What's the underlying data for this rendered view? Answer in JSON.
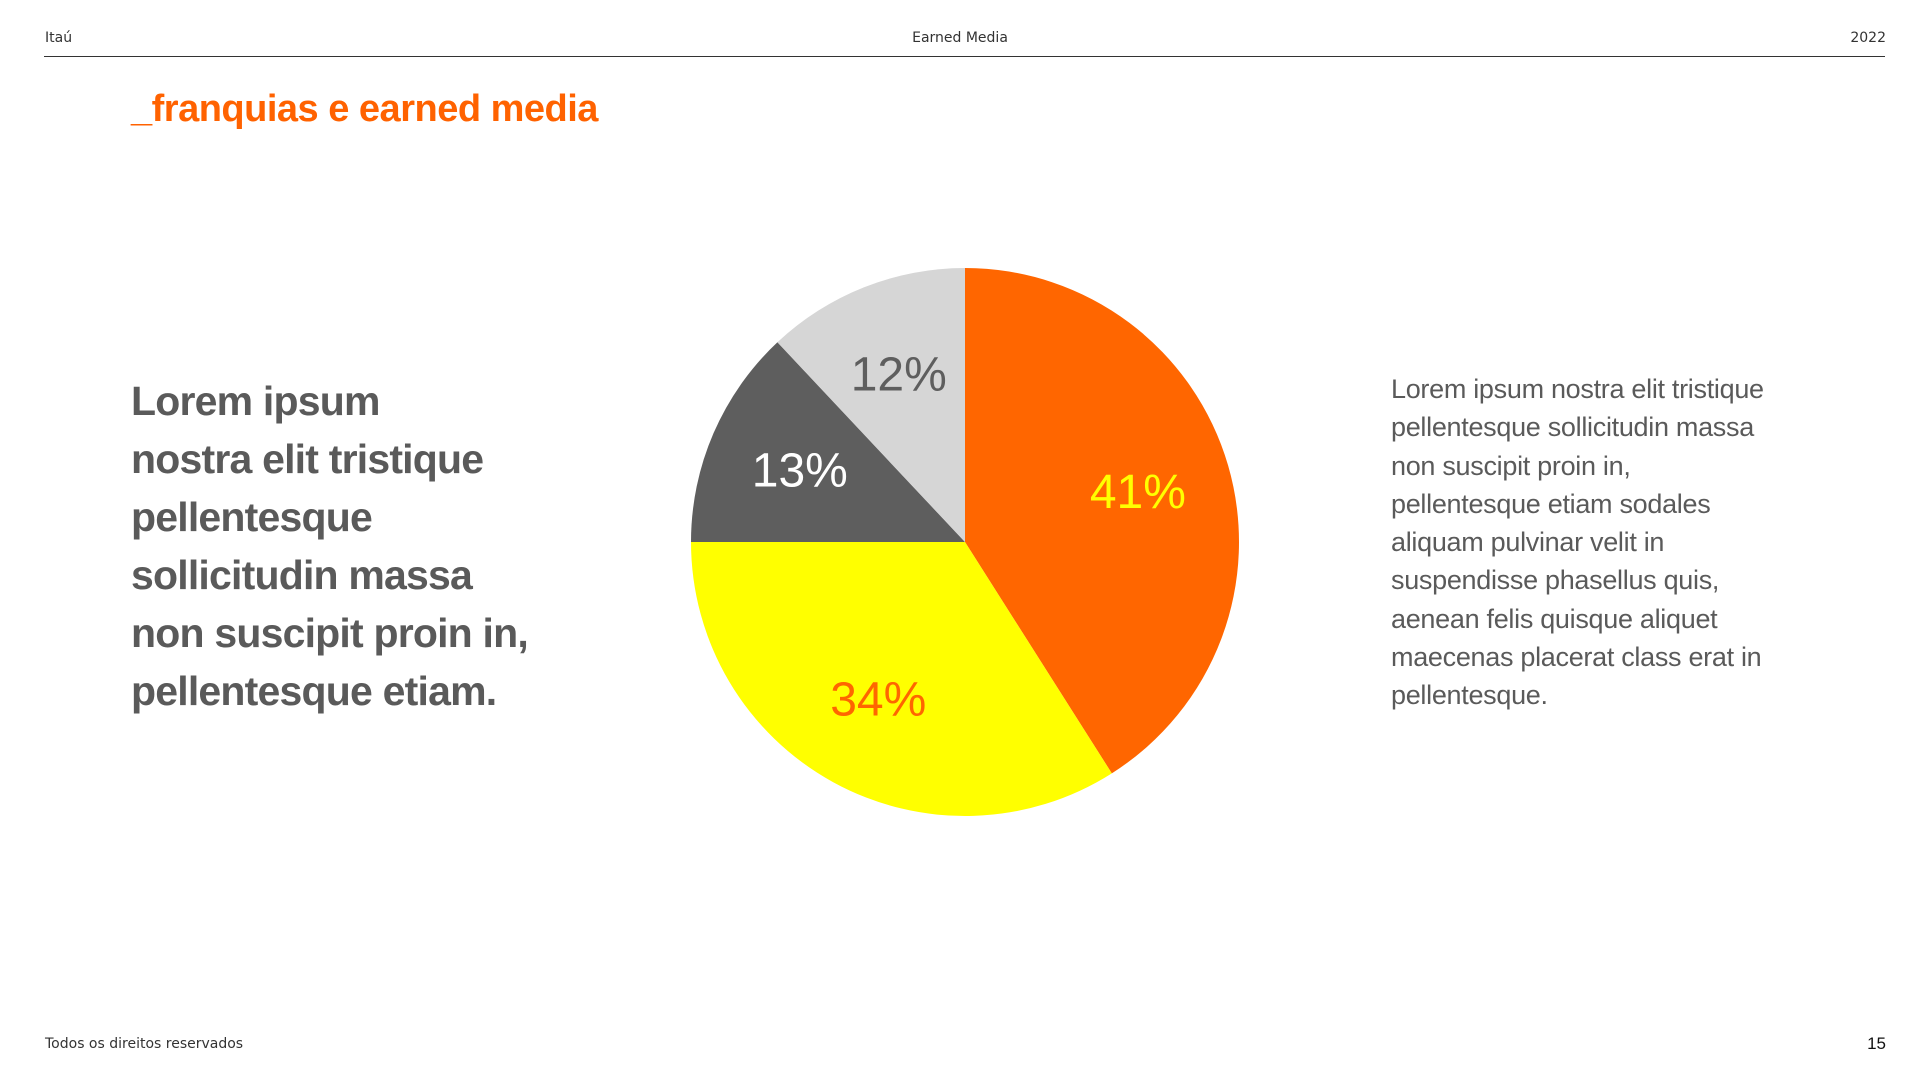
{
  "header": {
    "brand": "Itaú",
    "title": "Earned Media",
    "year": "2022"
  },
  "slide_title": "_franquias e earned media",
  "left_text": "Lorem ipsum\nnostra elit tristique\npellentesque\nsollicitudin massa\nnon suscipit proin in,\npellentesque etiam.",
  "right_text": "Lorem ipsum nostra elit tristique\npellentesque sollicitudin massa\nnon suscipit proin in,\npellentesque etiam sodales\naliquam pulvinar velit in\nsuspendisse phasellus quis,\naenean felis quisque aliquet\nmaecenas placerat class erat in\npellentesque.",
  "footer": {
    "copyright": "Todos os direitos reservados",
    "page_number": "15"
  },
  "colors": {
    "accent": "#ff6200",
    "text": "#5a5a5a"
  },
  "chart_data": {
    "type": "pie",
    "title": "",
    "start_angle_deg": 0,
    "direction": "clockwise",
    "slices": [
      {
        "label": "41%",
        "value": 41,
        "color": "#ff6600",
        "label_color": "#ffff00"
      },
      {
        "label": "34%",
        "value": 34,
        "color": "#ffff00",
        "label_color": "#ff6600"
      },
      {
        "label": "13%",
        "value": 13,
        "color": "#5e5e5e",
        "label_color": "#ffffff"
      },
      {
        "label": "12%",
        "value": 12,
        "color": "#d6d6d6",
        "label_color": "#5e5e5e"
      }
    ]
  }
}
